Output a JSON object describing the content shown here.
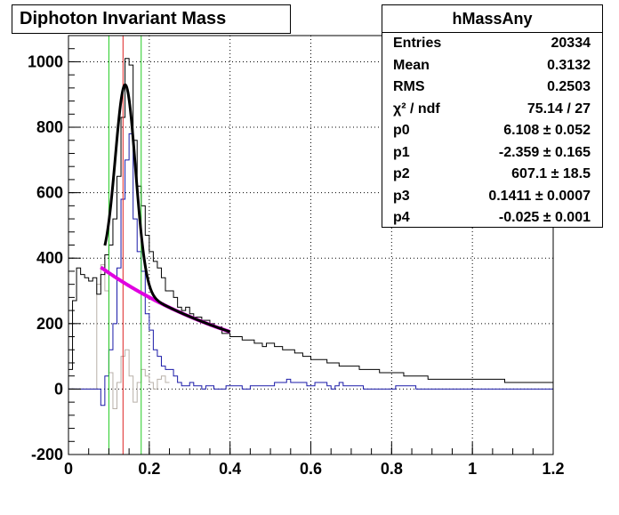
{
  "title": "Diphoton Invariant Mass",
  "stats": {
    "name": "hMassAny",
    "rows": [
      {
        "label": "Entries",
        "value": "20334"
      },
      {
        "label": "Mean",
        "value": "0.3132"
      },
      {
        "label": "RMS",
        "value": "0.2503"
      },
      {
        "label": "χ² / ndf",
        "value": "75.14 / 27"
      },
      {
        "label": "p0",
        "value": "6.108 ± 0.052"
      },
      {
        "label": "p1",
        "value": "-2.359 ± 0.165"
      },
      {
        "label": "p2",
        "value": "607.1 ± 18.5"
      },
      {
        "label": "p3",
        "value": "0.1411 ± 0.0007"
      },
      {
        "label": "p4",
        "value": "-0.025 ± 0.001"
      }
    ]
  },
  "colors": {
    "data": "#000000",
    "subtracted": "#1a1aa8",
    "background": "#b8b0a8",
    "fit": "#000000",
    "bkg_fit": "#e000e0",
    "window": "#22cc22",
    "peak": "#dd2222"
  },
  "chart_data": {
    "type": "line",
    "xlim": [
      0,
      1.2
    ],
    "ylim": [
      -200,
      1080
    ],
    "x_ticks": [
      0,
      0.2,
      0.4,
      0.6,
      0.8,
      1,
      1.2
    ],
    "x_tick_labels": [
      "0",
      "0.2",
      "0.4",
      "0.6",
      "0.8",
      "1",
      "1.2"
    ],
    "y_ticks": [
      -200,
      0,
      200,
      400,
      600,
      800,
      1000
    ],
    "y_tick_labels": [
      "-200",
      "0",
      "200",
      "400",
      "600",
      "800",
      "1000"
    ],
    "grid": true,
    "bin_width": 0.01,
    "series": [
      {
        "values_x0": 0.0,
        "values": [
          60,
          270,
          370,
          350,
          340,
          330,
          340,
          290,
          350,
          410,
          440,
          520,
          650,
          830,
          1010,
          990,
          760,
          620,
          560,
          470,
          420,
          390,
          370,
          340,
          300,
          300,
          280,
          250,
          240,
          250,
          230,
          220,
          220,
          210,
          210,
          200,
          190,
          190,
          170,
          170,
          160,
          160,
          160,
          150,
          150,
          150,
          140,
          140,
          130,
          140,
          140,
          130,
          130,
          120,
          120,
          120,
          110,
          110,
          100,
          100,
          90,
          90,
          90,
          90,
          80,
          80,
          80,
          70,
          70,
          70,
          70,
          70,
          60,
          60,
          60,
          60,
          60,
          50,
          50,
          50,
          50,
          50,
          50,
          40,
          40,
          40,
          40,
          40,
          40,
          30,
          30,
          30,
          30,
          30,
          30,
          30,
          30,
          30,
          30,
          30,
          30,
          30,
          30,
          30,
          30,
          30,
          30,
          30,
          20,
          20,
          20,
          20,
          20,
          20,
          20,
          20,
          20,
          20,
          20,
          20
        ]
      },
      {
        "values_x0": 0.0,
        "values": [
          0,
          0,
          0,
          0,
          0,
          0,
          0,
          0,
          -50,
          40,
          120,
          200,
          370,
          580,
          700,
          780,
          520,
          420,
          360,
          230,
          180,
          120,
          100,
          70,
          60,
          60,
          40,
          20,
          10,
          10,
          20,
          10,
          10,
          0,
          10,
          10,
          0,
          0,
          0,
          10,
          10,
          10,
          10,
          0,
          0,
          10,
          10,
          10,
          10,
          10,
          10,
          20,
          20,
          20,
          30,
          20,
          20,
          20,
          20,
          10,
          10,
          20,
          20,
          20,
          10,
          0,
          10,
          20,
          10,
          10,
          10,
          10,
          10,
          0,
          0,
          0,
          0,
          0,
          0,
          0,
          0,
          10,
          10,
          10,
          10,
          10,
          0,
          0,
          0,
          0,
          0,
          0,
          0,
          0,
          0,
          0,
          0,
          0,
          0,
          0,
          0,
          0,
          0,
          0,
          0,
          0,
          0,
          0,
          0,
          0,
          0,
          0,
          0,
          0,
          0,
          0,
          0,
          0,
          0,
          0
        ]
      },
      {
        "values_x0": 0.0,
        "values": [
          0,
          0,
          0,
          0,
          0,
          0,
          0,
          320,
          380,
          300,
          50,
          -60,
          20,
          100,
          120,
          40,
          -40,
          20,
          60,
          40,
          20,
          0,
          30,
          40,
          20
        ]
      }
    ],
    "fit_curve": {
      "x_range": [
        0.09,
        0.4
      ],
      "params": {
        "p0": 6.108,
        "p1": -2.359,
        "p2": 607.1,
        "p3": 0.1411,
        "p4": -0.025
      }
    },
    "background_curve": {
      "x_range": [
        0.08,
        0.4
      ],
      "params": {
        "p0": 6.108,
        "p1": -2.359
      }
    },
    "vertical_lines": [
      {
        "x": 0.1,
        "role": "window"
      },
      {
        "x": 0.135,
        "role": "peak"
      },
      {
        "x": 0.18,
        "role": "window"
      }
    ]
  }
}
